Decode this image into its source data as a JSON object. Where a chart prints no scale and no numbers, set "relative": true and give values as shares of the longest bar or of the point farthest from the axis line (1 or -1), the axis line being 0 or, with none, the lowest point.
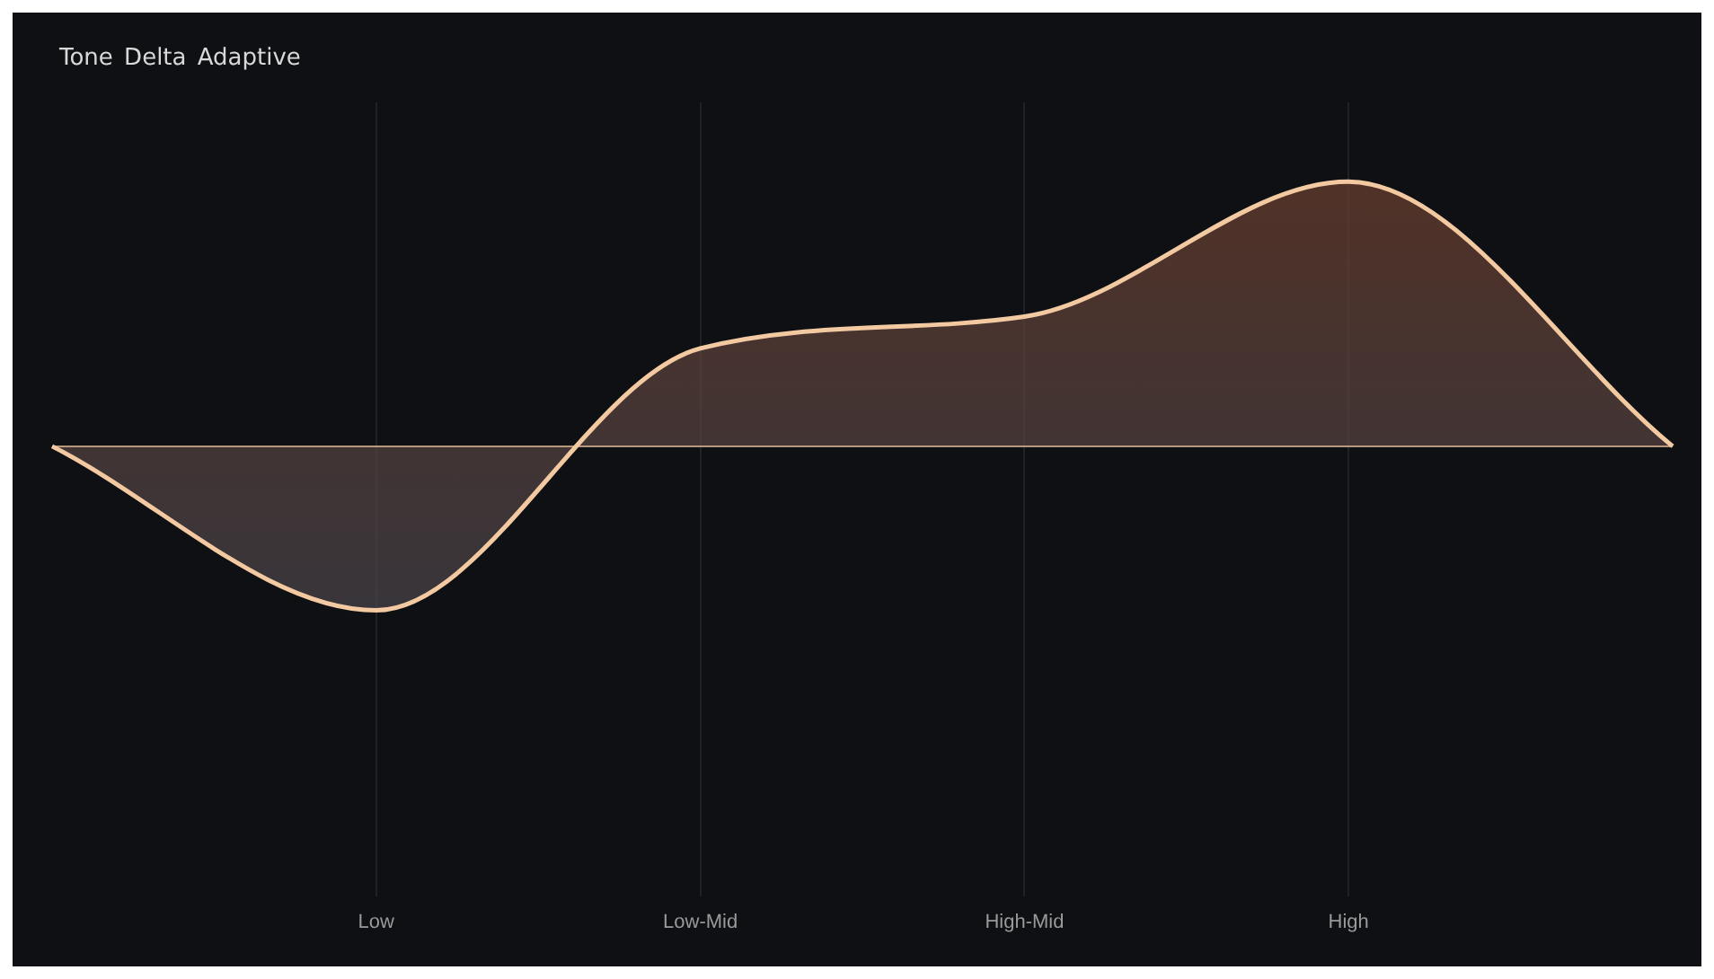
{
  "chart_data": {
    "type": "area",
    "title": "Tone Delta Adaptive",
    "relative": true,
    "categories": [
      null,
      "Low",
      "Low-Mid",
      "High-Mid",
      "High",
      null
    ],
    "series": [
      {
        "color": "#f2c9a0",
        "values": [
          0,
          -0.62,
          0.37,
          0.49,
          1,
          0
        ]
      }
    ],
    "grid": "x",
    "legend": false,
    "marker": "none",
    "line_style": "solid"
  }
}
